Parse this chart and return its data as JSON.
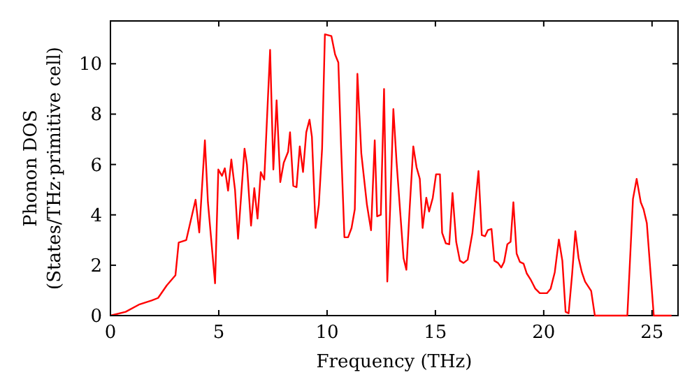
{
  "chart_data": {
    "type": "line",
    "xlabel": "Frequency (THz)",
    "ylabel": "Phonon DOS\n(States/THz·primitive cell)",
    "xlim": [
      0,
      26.2
    ],
    "ylim": [
      0,
      11.7
    ],
    "xticks": [
      0,
      5,
      10,
      15,
      20,
      25
    ],
    "yticks": [
      0,
      2,
      4,
      6,
      8,
      10
    ],
    "grid": false,
    "marker": "none",
    "line_style": "solid",
    "series": [
      {
        "color": "#ff0000",
        "x": [
          0,
          0.7,
          1.35,
          1.9,
          2.2,
          2.6,
          3.0,
          3.15,
          3.5,
          3.93,
          4.1,
          4.36,
          4.5,
          4.83,
          4.98,
          5.15,
          5.28,
          5.43,
          5.58,
          5.75,
          5.89,
          6.19,
          6.3,
          6.49,
          6.64,
          6.79,
          6.94,
          7.1,
          7.37,
          7.52,
          7.67,
          7.84,
          8.0,
          8.2,
          8.29,
          8.44,
          8.59,
          8.74,
          8.89,
          9.04,
          9.19,
          9.3,
          9.47,
          9.62,
          9.77,
          9.9,
          10.2,
          10.37,
          10.52,
          10.65,
          10.8,
          10.97,
          11.13,
          11.28,
          11.4,
          11.58,
          11.84,
          12.03,
          12.2,
          12.31,
          12.48,
          12.63,
          12.78,
          12.91,
          13.06,
          13.21,
          13.53,
          13.66,
          13.81,
          13.98,
          14.13,
          14.28,
          14.41,
          14.58,
          14.71,
          14.88,
          15.03,
          15.21,
          15.31,
          15.48,
          15.64,
          15.79,
          15.96,
          16.13,
          16.3,
          16.49,
          16.71,
          16.99,
          17.14,
          17.29,
          17.42,
          17.59,
          17.72,
          17.89,
          18.04,
          18.17,
          18.32,
          18.47,
          18.6,
          18.75,
          18.9,
          19.07,
          19.22,
          19.39,
          19.61,
          19.82,
          20.15,
          20.32,
          20.51,
          20.7,
          20.86,
          21.01,
          21.15,
          21.31,
          21.46,
          21.61,
          21.76,
          21.91,
          22.19,
          22.36,
          23.86,
          24.12,
          24.29,
          24.48,
          24.61,
          24.76,
          25.08,
          25.9
        ],
        "values": [
          0,
          0.15,
          0.45,
          0.6,
          0.7,
          1.2,
          1.6,
          2.9,
          3.0,
          4.6,
          3.3,
          6.96,
          4.5,
          1.28,
          5.8,
          5.55,
          5.85,
          4.96,
          6.2,
          5.0,
          3.05,
          6.63,
          6.0,
          3.57,
          5.06,
          3.85,
          5.7,
          5.4,
          10.55,
          5.8,
          8.55,
          5.3,
          6.07,
          6.5,
          7.28,
          5.15,
          5.1,
          6.72,
          5.7,
          7.28,
          7.78,
          7.1,
          3.48,
          4.4,
          6.63,
          11.17,
          11.1,
          10.37,
          10.05,
          6.63,
          3.11,
          3.11,
          3.48,
          4.22,
          9.6,
          6.44,
          4.4,
          3.39,
          6.96,
          3.94,
          4.0,
          9.0,
          1.35,
          4.22,
          8.2,
          6.07,
          2.28,
          1.82,
          4.22,
          6.72,
          5.89,
          5.43,
          3.48,
          4.68,
          4.13,
          4.68,
          5.61,
          5.61,
          3.29,
          2.87,
          2.83,
          4.87,
          2.93,
          2.18,
          2.09,
          2.22,
          3.29,
          5.74,
          3.2,
          3.15,
          3.39,
          3.44,
          2.18,
          2.09,
          1.91,
          2.13,
          2.83,
          2.93,
          4.5,
          2.46,
          2.13,
          2.06,
          1.67,
          1.44,
          1.07,
          0.89,
          0.89,
          1.07,
          1.72,
          3.02,
          2.18,
          0.15,
          0.09,
          1.63,
          3.35,
          2.28,
          1.72,
          1.35,
          0.98,
          0,
          0,
          4.63,
          5.43,
          4.5,
          4.22,
          3.67,
          0,
          0
        ]
      }
    ]
  }
}
